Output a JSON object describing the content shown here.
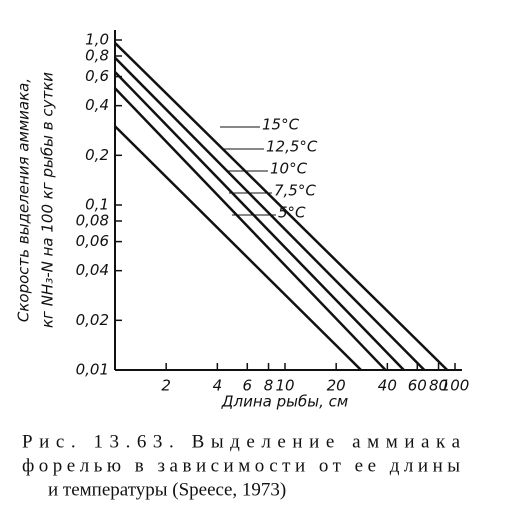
{
  "chart_data": {
    "type": "line",
    "ylabel": [
      "Скорость выделения аммиака,",
      "кг NH₃-N на 100 кг рыбы в сутки"
    ],
    "xlabel": "Длина рыбы, см",
    "log_x": true,
    "log_y": true,
    "xlim": [
      1,
      100
    ],
    "ylim": [
      0.01,
      1.0
    ],
    "xticks": [
      2,
      4,
      6,
      8,
      10,
      20,
      40,
      60,
      80,
      100
    ],
    "yticks": [
      {
        "value": 1.0,
        "label": "1,0"
      },
      {
        "value": 0.8,
        "label": "0,8"
      },
      {
        "value": 0.6,
        "label": "0,6"
      },
      {
        "value": 0.4,
        "label": "0,4"
      },
      {
        "value": 0.2,
        "label": "0,2"
      },
      {
        "value": 0.1,
        "label": "0,1"
      },
      {
        "value": 0.08,
        "label": "0,08"
      },
      {
        "value": 0.06,
        "label": "0,06"
      },
      {
        "value": 0.04,
        "label": "0,04"
      },
      {
        "value": 0.02,
        "label": "0,02"
      },
      {
        "value": 0.01,
        "label": "0,01"
      }
    ],
    "grid": false,
    "series": [
      {
        "name": "15°C",
        "color": "#000000",
        "x": [
          1,
          90
        ],
        "values": [
          0.96,
          0.01
        ]
      },
      {
        "name": "12,5°C",
        "color": "#000000",
        "x": [
          1,
          66
        ],
        "values": [
          0.78,
          0.01
        ]
      },
      {
        "name": "10°C",
        "color": "#000000",
        "x": [
          1,
          50
        ],
        "values": [
          0.64,
          0.01
        ]
      },
      {
        "name": "7,5°C",
        "color": "#000000",
        "x": [
          1,
          39
        ],
        "values": [
          0.51,
          0.01
        ]
      },
      {
        "name": "5°C",
        "color": "#000000",
        "x": [
          1,
          28
        ],
        "values": [
          0.3,
          0.01
        ]
      }
    ],
    "caption": [
      "Рис. 13.63. Выделение аммиака",
      "форелью в зависимости от ее длины",
      "и температуры (Speece, 1973)"
    ]
  }
}
